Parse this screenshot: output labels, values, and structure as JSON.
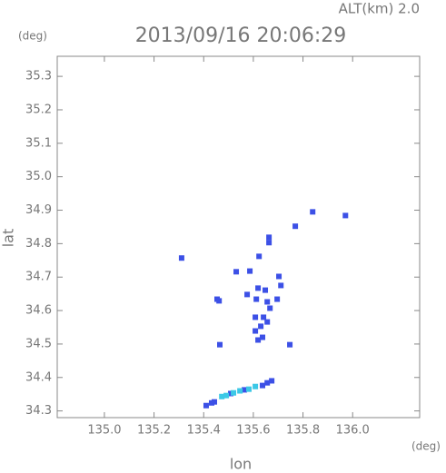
{
  "chart_data": {
    "type": "scatter",
    "title": "2013/09/16 20:06:29",
    "subtitle": "ALT(km) 2.0",
    "y_label": "lat",
    "y_unit": "(deg)",
    "x_label": "lon",
    "x_unit": "(deg)",
    "xlim": [
      134.81,
      136.27
    ],
    "ylim": [
      34.28,
      35.36
    ],
    "xticks": [
      {
        "value": 135.0,
        "label": "135.0"
      },
      135.2,
      135.4,
      135.6,
      135.8,
      {
        "value": 136.0,
        "label": "136.0"
      }
    ],
    "yticks": [
      34.3,
      34.4,
      34.5,
      34.6,
      34.7,
      34.8,
      34.9,
      {
        "value": 35.0,
        "label": "35.0"
      },
      35.1,
      35.2,
      35.3
    ],
    "series": [
      {
        "color": "#3c50e6",
        "x": [
          135.311,
          135.839,
          135.769,
          135.971,
          135.663,
          135.663,
          135.531,
          135.586,
          135.623,
          135.454,
          135.462,
          135.703,
          135.711,
          135.696,
          135.575,
          135.619,
          135.648,
          135.612,
          135.656,
          135.641,
          135.656,
          135.63,
          135.608,
          135.637,
          135.619,
          135.465,
          135.747,
          135.667,
          135.608,
          135.674,
          135.656,
          135.637,
          135.443,
          135.432,
          135.564,
          135.41,
          135.509
        ],
        "values": [
          34.757,
          34.895,
          34.852,
          34.884,
          34.819,
          34.803,
          34.716,
          34.718,
          34.762,
          34.634,
          34.629,
          34.702,
          34.675,
          34.634,
          34.648,
          34.667,
          34.661,
          34.634,
          34.626,
          34.58,
          34.566,
          34.553,
          34.539,
          34.52,
          34.512,
          34.498,
          34.498,
          34.607,
          34.58,
          34.39,
          34.384,
          34.376,
          34.327,
          34.324,
          34.363,
          34.316,
          34.352
        ]
      },
      {
        "color": "#3cc8e6",
        "x": [
          135.473,
          135.491,
          135.52,
          135.546,
          135.582,
          135.608
        ],
        "values": [
          34.343,
          34.346,
          34.354,
          34.36,
          34.365,
          34.373
        ]
      }
    ]
  }
}
